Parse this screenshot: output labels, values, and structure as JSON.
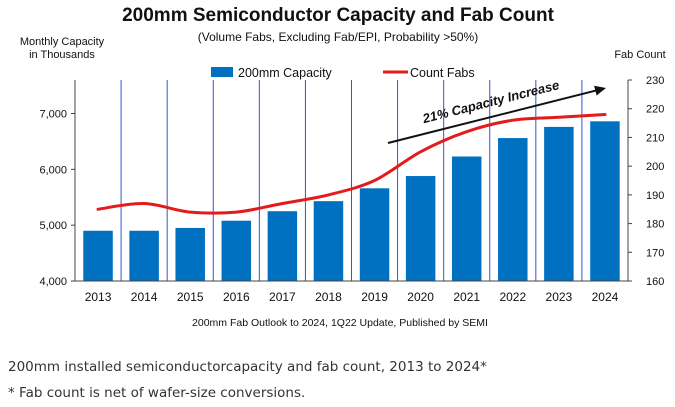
{
  "chart_data": {
    "type": "bar",
    "title": "200mm Semiconductor Capacity and Fab Count",
    "subtitle": "(Volume Fabs, Excluding Fab/EPI, Probability >50%)",
    "ylabel_left_line1": "Monthly Capacity",
    "ylabel_left_line2": "in Thousands",
    "ylabel_right": "Fab Count",
    "categories": [
      "2013",
      "2014",
      "2015",
      "2016",
      "2017",
      "2018",
      "2019",
      "2020",
      "2021",
      "2022",
      "2023",
      "2024"
    ],
    "series": [
      {
        "name": "200mm Capacity",
        "type": "bar",
        "axis": "left",
        "values": [
          4900,
          4900,
          4950,
          5080,
          5250,
          5430,
          5660,
          5880,
          6230,
          6560,
          6760,
          6860
        ]
      },
      {
        "name": "Count Fabs",
        "type": "line",
        "axis": "right",
        "values": [
          185,
          187,
          184,
          184,
          187,
          190,
          195,
          205,
          212,
          216,
          217,
          218
        ]
      }
    ],
    "ylim_left": [
      4000,
      7600
    ],
    "yticks_left": [
      "4,000",
      "5,000",
      "6,000",
      "7,000"
    ],
    "yticks_left_values": [
      4000,
      5000,
      6000,
      7000
    ],
    "ylim_right": [
      160,
      230
    ],
    "yticks_right": [
      "160",
      "170",
      "180",
      "190",
      "200",
      "210",
      "220",
      "230"
    ],
    "yticks_right_values": [
      160,
      170,
      180,
      190,
      200,
      210,
      220,
      230
    ],
    "annotation": "21% Capacity Increase",
    "source_note": "200mm Fab Outlook to 2024, 1Q22 Update, Published by SEMI",
    "legend_position": "top",
    "grid": "vertical",
    "colors": {
      "bar": "#0070C0",
      "line": "#E31B1B",
      "grid": "#3355CC",
      "arrow": "#111111",
      "text": "#111111"
    }
  },
  "captions": {
    "line1": "200mm installed semiconductorcapacity and fab count, 2013 to 2024*",
    "line2": "* Fab count is net of wafer-size conversions."
  }
}
